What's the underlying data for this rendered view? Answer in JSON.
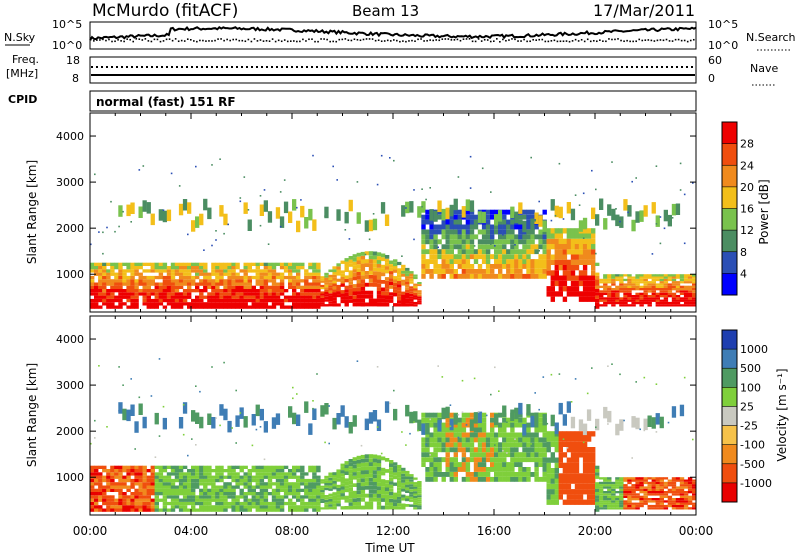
{
  "header": {
    "station": "McMurdo (fitACF)",
    "beam": "Beam 13",
    "date": "17/Mar/2011"
  },
  "noise_panel": {
    "left_label": "N.Sky",
    "right_label": "N.Search",
    "left_ticks": [
      "10^5",
      "10^0"
    ],
    "right_ticks": [
      "10^5",
      "10^0"
    ]
  },
  "freq_panel": {
    "left_label_1": "Freq.",
    "left_label_2": "[MHz]",
    "right_label": "Nave",
    "left_ticks": [
      "18",
      "8"
    ],
    "right_ticks": [
      "60",
      "0"
    ]
  },
  "cpid": {
    "label": "CPID",
    "value": "normal (fast) 151 RF"
  },
  "x_axis": {
    "label": "Time UT",
    "ticks": [
      "00:00",
      "04:00",
      "08:00",
      "12:00",
      "16:00",
      "20:00",
      "00:00"
    ]
  },
  "y_axis": {
    "label": "Slant Range [km]",
    "ticks": [
      "1000",
      "2000",
      "3000",
      "4000"
    ]
  },
  "power_scale": {
    "label": "Power [dB]",
    "ticks": [
      "4",
      "8",
      "12",
      "16",
      "20",
      "24",
      "28"
    ],
    "colors": [
      "#0000ff",
      "#2b4fb5",
      "#4b8d62",
      "#79c24d",
      "#f3bf1a",
      "#f08a1d",
      "#f04e0e",
      "#ee0000"
    ]
  },
  "velocity_scale": {
    "label": "Velocity [m s⁻¹]",
    "ticks": [
      "1000",
      "500",
      "100",
      "25",
      "-25",
      "-100",
      "-500",
      "-1000"
    ],
    "colors": [
      "#1f3fb0",
      "#3f7db5",
      "#4f9a62",
      "#7fcf3b",
      "#c9c9c0",
      "#f6c24a",
      "#f08a1d",
      "#f04e0e",
      "#e80000"
    ]
  },
  "chart_data": [
    {
      "type": "heatmap",
      "name": "power",
      "x": [
        "00:00",
        "04:00",
        "08:00",
        "12:00",
        "16:00",
        "20:00",
        "00:00"
      ],
      "ylim": [
        180,
        4500
      ],
      "xlabel": "Time UT",
      "ylabel": "Slant Range [km]",
      "colorbar": "Power [dB]",
      "clim": [
        0,
        30
      ]
    },
    {
      "type": "heatmap",
      "name": "velocity",
      "x": [
        "00:00",
        "04:00",
        "08:00",
        "12:00",
        "16:00",
        "20:00",
        "00:00"
      ],
      "ylim": [
        180,
        4500
      ],
      "xlabel": "Time UT",
      "ylabel": "Slant Range [km]",
      "colorbar": "Velocity [m s⁻¹]",
      "clim": [
        -1000,
        1000
      ]
    }
  ]
}
